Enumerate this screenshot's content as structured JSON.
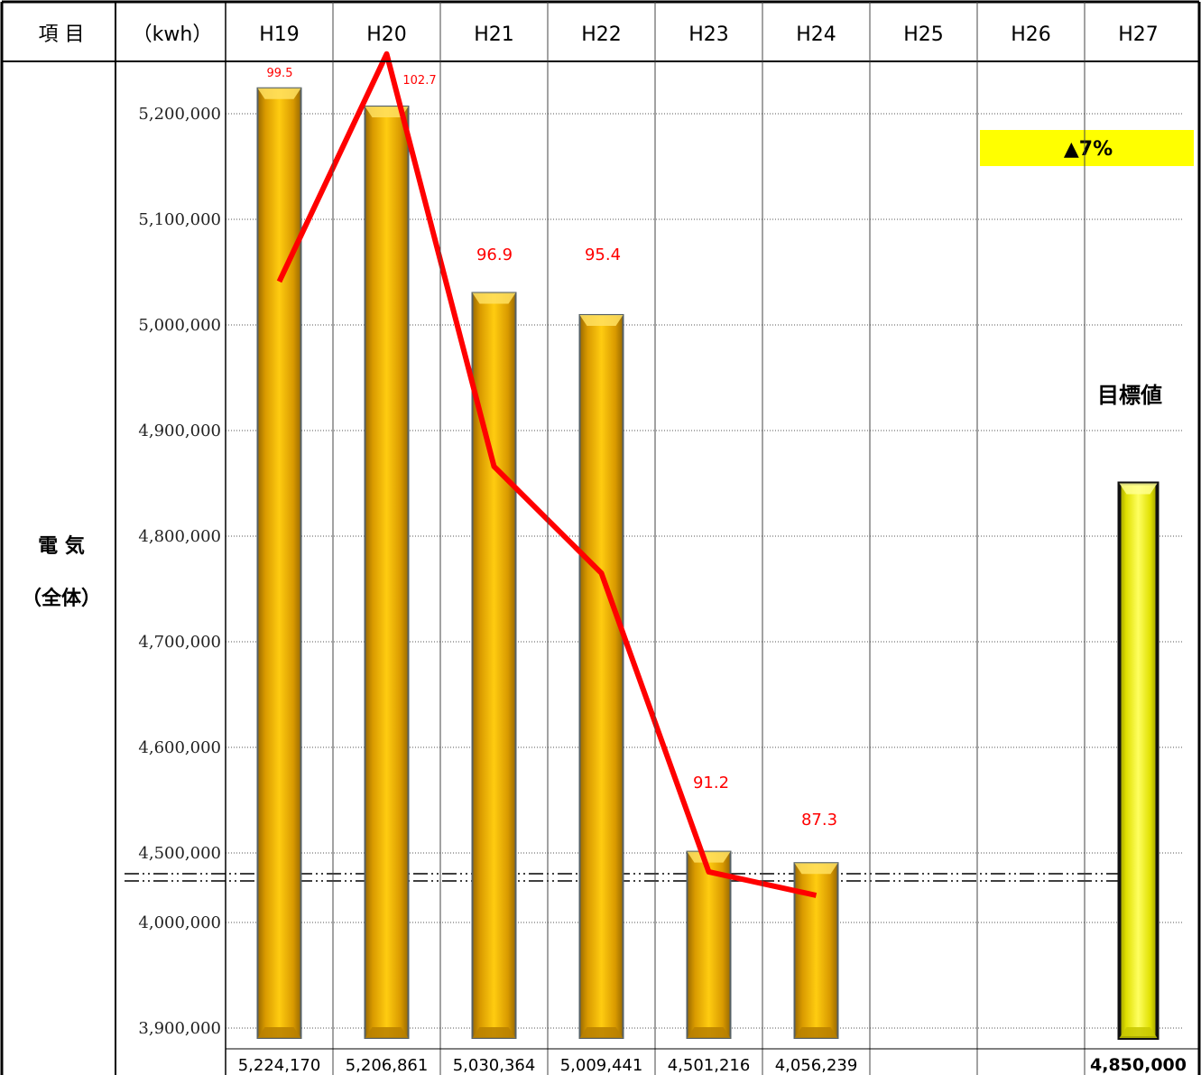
{
  "header": {
    "item_label": "項 目",
    "unit_label": "（kwh）"
  },
  "row": {
    "label_line1": "電 気",
    "label_line2": "（全体）"
  },
  "annotation": {
    "reduction": "▲7%",
    "target_tag": "目標値"
  },
  "colors": {
    "bar_gold": "#e9a800",
    "bar_target": "#f2f200",
    "line": "#ff0000",
    "reduction_box": "#ffff00"
  },
  "chart_data": {
    "type": "bar",
    "categories": [
      "H19",
      "H20",
      "H21",
      "H22",
      "H23",
      "H24",
      "H25",
      "H26",
      "H27"
    ],
    "y_axis": {
      "ticks": [
        "3,900,000",
        "4,000,000",
        "4,500,000",
        "4,600,000",
        "4,700,000",
        "4,800,000",
        "4,900,000",
        "5,000,000",
        "5,100,000",
        "5,200,000"
      ],
      "tick_values": [
        3900000,
        4000000,
        4500000,
        4600000,
        4700000,
        4800000,
        4900000,
        5000000,
        5100000,
        5200000
      ],
      "axis_break_between": [
        4000000,
        4500000
      ],
      "grid": true
    },
    "bars": [
      {
        "category": "H19",
        "value": 5224170,
        "label": "5,224,170"
      },
      {
        "category": "H20",
        "value": 5206861,
        "label": "5,206,861"
      },
      {
        "category": "H21",
        "value": 5030364,
        "label": "5,030,364"
      },
      {
        "category": "H22",
        "value": 5009441,
        "label": "5,009,441"
      },
      {
        "category": "H23",
        "value": 4501216,
        "label": "4,501,216"
      },
      {
        "category": "H24",
        "value": 4056239,
        "label": "4,056,239"
      },
      {
        "category": "H25",
        "value": null,
        "label": ""
      },
      {
        "category": "H26",
        "value": null,
        "label": ""
      },
      {
        "category": "H27",
        "value": 4850000,
        "label": "4,850,000",
        "target": true
      }
    ],
    "line_series": {
      "categories": [
        "H19",
        "H20",
        "H21",
        "H22",
        "H23",
        "H24"
      ],
      "values": [
        99.5,
        102.7,
        96.9,
        95.4,
        91.2,
        87.3
      ],
      "labels": [
        "99.5",
        "102.7",
        "96.9",
        "95.4",
        "91.2",
        "87.3"
      ]
    }
  }
}
